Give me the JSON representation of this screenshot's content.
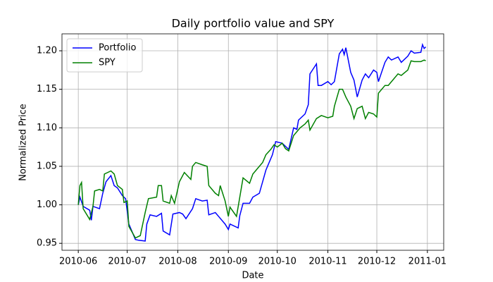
{
  "chart_data": {
    "type": "line",
    "title": "Daily portfolio value and SPY",
    "x_label": "Date",
    "y_label": "Normalized Price",
    "grid": true,
    "legend": "upper left",
    "xlim": [
      "2010-05-22",
      "2011-01-11"
    ],
    "xticks": [
      {
        "value": "2010-06-01",
        "label": "2010-06"
      },
      {
        "value": "2010-07-01",
        "label": "2010-07"
      },
      {
        "value": "2010-08-01",
        "label": "2010-08"
      },
      {
        "value": "2010-09-01",
        "label": "2010-09"
      },
      {
        "value": "2010-10-01",
        "label": "2010-10"
      },
      {
        "value": "2010-11-01",
        "label": "2010-11"
      },
      {
        "value": "2010-12-01",
        "label": "2010-12"
      },
      {
        "value": "2011-01-01",
        "label": "2011-01"
      }
    ],
    "ylim": [
      0.941,
      1.222
    ],
    "yticks": [
      0.95,
      {
        "value": 1,
        "label": "1.00"
      },
      1.05,
      {
        "value": 1.1,
        "label": "1.10"
      },
      1.15,
      {
        "value": 1.2,
        "label": "1.20"
      }
    ],
    "series": [
      {
        "name": "Portfolio",
        "color": "#0000ff",
        "x": [
          "2010-06-01",
          "2010-06-02",
          "2010-06-04",
          "2010-06-08",
          "2010-06-09",
          "2010-06-10",
          "2010-06-14",
          "2010-06-16",
          "2010-06-18",
          "2010-06-21",
          "2010-06-23",
          "2010-06-25",
          "2010-06-28",
          "2010-06-30",
          "2010-07-02",
          "2010-07-06",
          "2010-07-08",
          "2010-07-12",
          "2010-07-13",
          "2010-07-15",
          "2010-07-19",
          "2010-07-22",
          "2010-07-23",
          "2010-07-27",
          "2010-07-29",
          "2010-08-02",
          "2010-08-04",
          "2010-08-06",
          "2010-08-10",
          "2010-08-12",
          "2010-08-16",
          "2010-08-19",
          "2010-08-20",
          "2010-08-24",
          "2010-08-26",
          "2010-08-30",
          "2010-09-01",
          "2010-09-02",
          "2010-09-07",
          "2010-09-08",
          "2010-09-10",
          "2010-09-14",
          "2010-09-16",
          "2010-09-20",
          "2010-09-22",
          "2010-09-24",
          "2010-09-28",
          "2010-09-30",
          "2010-10-04",
          "2010-10-06",
          "2010-10-08",
          "2010-10-11",
          "2010-10-13",
          "2010-10-14",
          "2010-10-18",
          "2010-10-20",
          "2010-10-21",
          "2010-10-25",
          "2010-10-26",
          "2010-10-28",
          "2010-11-01",
          "2010-11-03",
          "2010-11-05",
          "2010-11-08",
          "2010-11-10",
          "2010-11-11",
          "2010-11-12",
          "2010-11-15",
          "2010-11-17",
          "2010-11-19",
          "2010-11-22",
          "2010-11-24",
          "2010-11-26",
          "2010-11-29",
          "2010-12-01",
          "2010-12-02",
          "2010-12-06",
          "2010-12-08",
          "2010-12-10",
          "2010-12-14",
          "2010-12-16",
          "2010-12-20",
          "2010-12-22",
          "2010-12-24",
          "2010-12-28",
          "2010-12-29",
          "2010-12-30",
          "2010-12-31"
        ],
        "values": [
          1.0,
          1.01,
          0.998,
          0.993,
          0.98,
          0.998,
          0.995,
          1.015,
          1.03,
          1.038,
          1.025,
          1.022,
          1.012,
          1.008,
          0.975,
          0.955,
          0.954,
          0.953,
          0.975,
          0.987,
          0.985,
          0.989,
          0.966,
          0.961,
          0.988,
          0.99,
          0.988,
          0.982,
          0.995,
          1.008,
          1.005,
          1.006,
          0.987,
          0.99,
          0.985,
          0.975,
          0.968,
          0.975,
          0.97,
          0.986,
          1.002,
          1.002,
          1.01,
          1.015,
          1.03,
          1.045,
          1.065,
          1.082,
          1.08,
          1.076,
          1.072,
          1.1,
          1.098,
          1.11,
          1.118,
          1.13,
          1.17,
          1.183,
          1.155,
          1.155,
          1.16,
          1.156,
          1.16,
          1.196,
          1.202,
          1.195,
          1.204,
          1.172,
          1.162,
          1.14,
          1.162,
          1.17,
          1.165,
          1.175,
          1.172,
          1.16,
          1.185,
          1.192,
          1.188,
          1.192,
          1.185,
          1.193,
          1.2,
          1.197,
          1.198,
          1.208,
          1.203,
          1.205
        ]
      },
      {
        "name": "SPY",
        "color": "#008000",
        "x": [
          "2010-06-01",
          "2010-06-02",
          "2010-06-03",
          "2010-06-04",
          "2010-06-08",
          "2010-06-10",
          "2010-06-11",
          "2010-06-14",
          "2010-06-16",
          "2010-06-17",
          "2010-06-21",
          "2010-06-23",
          "2010-06-25",
          "2010-06-28",
          "2010-06-29",
          "2010-07-01",
          "2010-07-02",
          "2010-07-06",
          "2010-07-09",
          "2010-07-12",
          "2010-07-14",
          "2010-07-19",
          "2010-07-20",
          "2010-07-22",
          "2010-07-23",
          "2010-07-27",
          "2010-07-28",
          "2010-07-30",
          "2010-08-02",
          "2010-08-05",
          "2010-08-09",
          "2010-08-10",
          "2010-08-12",
          "2010-08-16",
          "2010-08-19",
          "2010-08-20",
          "2010-08-24",
          "2010-08-26",
          "2010-08-27",
          "2010-08-30",
          "2010-09-01",
          "2010-09-02",
          "2010-09-06",
          "2010-09-08",
          "2010-09-10",
          "2010-09-14",
          "2010-09-16",
          "2010-09-20",
          "2010-09-22",
          "2010-09-24",
          "2010-09-27",
          "2010-09-29",
          "2010-10-01",
          "2010-10-04",
          "2010-10-06",
          "2010-10-08",
          "2010-10-11",
          "2010-10-13",
          "2010-10-15",
          "2010-10-18",
          "2010-10-20",
          "2010-10-21",
          "2010-10-25",
          "2010-10-28",
          "2010-11-01",
          "2010-11-04",
          "2010-11-05",
          "2010-11-08",
          "2010-11-10",
          "2010-11-12",
          "2010-11-15",
          "2010-11-17",
          "2010-11-19",
          "2010-11-22",
          "2010-11-24",
          "2010-11-26",
          "2010-11-29",
          "2010-12-01",
          "2010-12-02",
          "2010-12-06",
          "2010-12-08",
          "2010-12-10",
          "2010-12-14",
          "2010-12-16",
          "2010-12-20",
          "2010-12-22",
          "2010-12-24",
          "2010-12-28",
          "2010-12-30",
          "2010-12-31"
        ],
        "values": [
          1.0,
          1.025,
          1.029,
          0.995,
          0.981,
          0.998,
          1.018,
          1.02,
          1.018,
          1.04,
          1.044,
          1.04,
          1.025,
          1.02,
          1.003,
          1.005,
          0.972,
          0.957,
          0.96,
          0.99,
          1.008,
          1.01,
          1.025,
          1.025,
          1.005,
          1.002,
          1.012,
          1.002,
          1.03,
          1.042,
          1.033,
          1.05,
          1.055,
          1.052,
          1.05,
          1.025,
          1.015,
          1.012,
          1.025,
          1.005,
          0.985,
          0.997,
          0.985,
          1.01,
          1.035,
          1.028,
          1.04,
          1.05,
          1.055,
          1.065,
          1.072,
          1.078,
          1.075,
          1.08,
          1.073,
          1.07,
          1.09,
          1.095,
          1.1,
          1.105,
          1.11,
          1.097,
          1.112,
          1.116,
          1.113,
          1.115,
          1.128,
          1.15,
          1.15,
          1.14,
          1.128,
          1.112,
          1.125,
          1.128,
          1.112,
          1.12,
          1.118,
          1.114,
          1.145,
          1.155,
          1.155,
          1.16,
          1.17,
          1.168,
          1.175,
          1.187,
          1.186,
          1.186,
          1.188,
          1.187
        ]
      }
    ]
  }
}
